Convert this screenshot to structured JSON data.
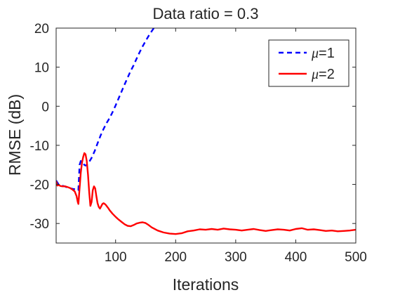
{
  "chart_data": {
    "type": "line",
    "title": "Data ratio = 0.3",
    "xlabel": "Iterations",
    "ylabel": "RMSE (dB)",
    "xlim": [
      1,
      500
    ],
    "ylim": [
      -35,
      20
    ],
    "xticks": [
      100,
      200,
      300,
      400,
      500
    ],
    "yticks": [
      -30,
      -20,
      -10,
      0,
      10,
      20
    ],
    "grid": false,
    "legend_position": "top-right",
    "series": [
      {
        "name_symbol": "μ",
        "name_value": "=1",
        "color": "#0000ff",
        "style": "dashed",
        "x": [
          1,
          5,
          10,
          15,
          20,
          25,
          30,
          35,
          38,
          40,
          42,
          45,
          48,
          50,
          52,
          55,
          60,
          65,
          70,
          75,
          80,
          85,
          90,
          95,
          100,
          105,
          110,
          115,
          120,
          125,
          130,
          135,
          140,
          145,
          150,
          155,
          160,
          165,
          170
        ],
        "y": [
          -19.0,
          -20.0,
          -20.3,
          -20.5,
          -20.8,
          -21.0,
          -21.2,
          -21.3,
          -21.5,
          -15.0,
          -14.0,
          -14.5,
          -15.0,
          -15.2,
          -15.0,
          -14.5,
          -13.2,
          -11.5,
          -9.5,
          -7.5,
          -5.8,
          -4.3,
          -3.0,
          -1.5,
          0.2,
          2.0,
          3.8,
          5.6,
          7.3,
          9.0,
          10.5,
          12.2,
          13.8,
          15.3,
          16.7,
          18.0,
          19.2,
          20.3,
          21.5
        ]
      },
      {
        "name_symbol": "μ",
        "name_value": "=2",
        "color": "#ff0000",
        "style": "solid",
        "x": [
          1,
          3,
          5,
          8,
          12,
          16,
          20,
          24,
          28,
          32,
          35,
          37,
          38,
          40,
          42,
          44,
          46,
          48,
          50,
          52,
          54,
          56,
          58,
          60,
          62,
          64,
          66,
          68,
          70,
          72,
          74,
          76,
          78,
          80,
          82,
          84,
          86,
          88,
          90,
          95,
          100,
          105,
          110,
          115,
          120,
          125,
          130,
          135,
          140,
          145,
          150,
          155,
          160,
          170,
          180,
          190,
          200,
          210,
          220,
          230,
          240,
          250,
          260,
          270,
          280,
          290,
          300,
          310,
          320,
          330,
          340,
          350,
          360,
          370,
          380,
          390,
          400,
          410,
          420,
          430,
          440,
          450,
          460,
          470,
          480,
          490,
          500
        ],
        "y": [
          -19.2,
          -20.3,
          -20.1,
          -20.4,
          -20.5,
          -20.5,
          -20.7,
          -20.9,
          -21.3,
          -21.8,
          -23.0,
          -24.5,
          -25.0,
          -21.0,
          -17.0,
          -14.5,
          -13.0,
          -12.0,
          -12.3,
          -14.0,
          -17.5,
          -22.0,
          -25.5,
          -24.5,
          -21.5,
          -20.5,
          -21.0,
          -23.0,
          -24.8,
          -25.8,
          -26.2,
          -25.6,
          -25.0,
          -24.8,
          -25.0,
          -25.3,
          -25.7,
          -26.1,
          -26.6,
          -27.5,
          -28.3,
          -29.0,
          -29.6,
          -30.2,
          -30.6,
          -30.7,
          -30.4,
          -30.0,
          -29.8,
          -29.7,
          -29.9,
          -30.4,
          -31.0,
          -31.8,
          -32.3,
          -32.6,
          -32.7,
          -32.5,
          -32.0,
          -31.8,
          -31.5,
          -31.6,
          -31.4,
          -31.6,
          -31.3,
          -31.5,
          -31.6,
          -31.8,
          -31.6,
          -31.4,
          -31.7,
          -31.9,
          -31.7,
          -31.5,
          -31.6,
          -31.8,
          -31.4,
          -31.2,
          -31.6,
          -31.5,
          -31.7,
          -31.9,
          -31.8,
          -32.0,
          -31.9,
          -31.8,
          -31.6
        ]
      }
    ]
  }
}
